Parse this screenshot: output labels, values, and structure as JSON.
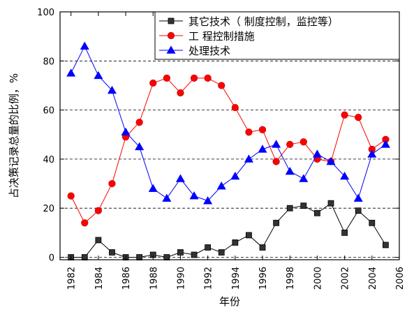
{
  "chart_data": {
    "type": "line",
    "xlabel": "年份",
    "ylabel": "占决策记录总量的比例，%",
    "x": [
      1982,
      1983,
      1984,
      1985,
      1986,
      1987,
      1988,
      1989,
      1990,
      1991,
      1992,
      1993,
      1994,
      1995,
      1996,
      1997,
      1998,
      1999,
      2000,
      2001,
      2002,
      2003,
      2004,
      2005
    ],
    "xlim": [
      1981.2,
      2006
    ],
    "ylim": [
      -1,
      100
    ],
    "xticks": [
      "1982",
      "1984",
      "1986",
      "1988",
      "1990",
      "1992",
      "1994",
      "1996",
      "1998",
      "2000",
      "2002",
      "2004",
      "2006"
    ],
    "yticks": [
      "0",
      "20",
      "40",
      "60",
      "80",
      "100"
    ],
    "grid": "horizontal dashed",
    "legend_position": "top-right",
    "series": [
      {
        "name": "其它技术（ 制度控制，监控等）",
        "color": "#000000",
        "marker": "square",
        "values": [
          0,
          0,
          7,
          2,
          0,
          0,
          1,
          0,
          2,
          1,
          4,
          2,
          6,
          9,
          4,
          14,
          20,
          21,
          18,
          22,
          10,
          19,
          14,
          5
        ]
      },
      {
        "name": "工 程控制措施",
        "color": "#ff0000",
        "marker": "circle",
        "values": [
          25,
          14,
          19,
          30,
          49,
          55,
          71,
          73,
          67,
          73,
          73,
          70,
          61,
          51,
          52,
          39,
          46,
          47,
          40,
          39,
          58,
          57,
          44,
          48
        ]
      },
      {
        "name": "处理技术",
        "color": "#0000ff",
        "marker": "triangle",
        "values": [
          75,
          86,
          74,
          68,
          51,
          45,
          28,
          24,
          32,
          25,
          23,
          29,
          33,
          40,
          44,
          46,
          35,
          32,
          42,
          39,
          33,
          24,
          42,
          46
        ]
      }
    ]
  }
}
